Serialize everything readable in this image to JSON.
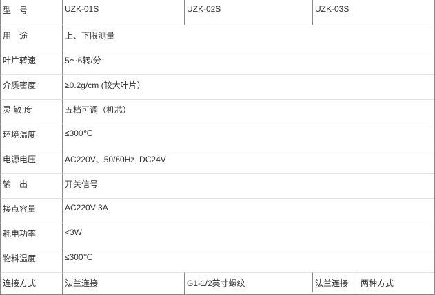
{
  "header": {
    "label": "型　号",
    "models": [
      "UZK-01S",
      "UZK-02S",
      "UZK-03S"
    ]
  },
  "rows": [
    {
      "label": "用　途",
      "value": "上、下限测量"
    },
    {
      "label": "叶片转速",
      "value": "5～6转/分"
    },
    {
      "label": "介质密度",
      "value": "≥0.2g/cm (较大叶片）"
    },
    {
      "label": "灵 敏 度",
      "value": "五档可调（机芯）"
    },
    {
      "label": "环境温度",
      "value": "≤300℃"
    },
    {
      "label": "电源电压",
      "value": "AC220V、50/60Hz, DC24V"
    },
    {
      "label": "输　出",
      "value": "开关信号"
    },
    {
      "label": "接点容量",
      "value": "AC220V  3A"
    },
    {
      "label": "耗电功率",
      "value": "<3W"
    },
    {
      "label": "物料温度",
      "value": "≤300℃"
    }
  ],
  "connection": {
    "label": "连接方式",
    "values": [
      "法兰连接",
      "G1-1/2英寸螺纹",
      "法兰连接",
      "两种方式"
    ]
  }
}
